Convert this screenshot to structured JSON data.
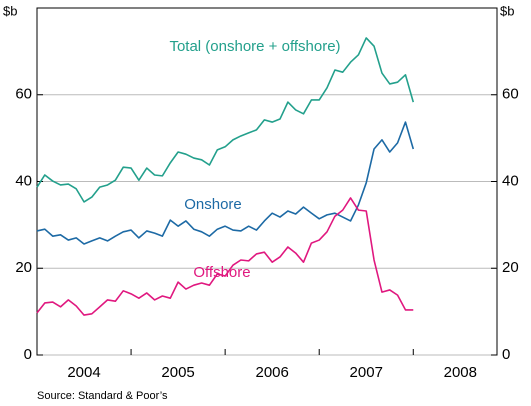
{
  "chart_data": {
    "type": "line",
    "y_label": "$b",
    "source": "Source: Standard & Poor’s",
    "x": [
      2004.0,
      2004.083,
      2004.167,
      2004.25,
      2004.333,
      2004.417,
      2004.5,
      2004.583,
      2004.667,
      2004.75,
      2004.833,
      2004.917,
      2005.0,
      2005.083,
      2005.167,
      2005.25,
      2005.333,
      2005.417,
      2005.5,
      2005.583,
      2005.667,
      2005.75,
      2005.833,
      2005.917,
      2006.0,
      2006.083,
      2006.167,
      2006.25,
      2006.333,
      2006.417,
      2006.5,
      2006.583,
      2006.667,
      2006.75,
      2006.833,
      2006.917,
      2007.0,
      2007.083,
      2007.167,
      2007.25,
      2007.333,
      2007.417,
      2007.5,
      2007.583,
      2007.667,
      2007.75,
      2007.833,
      2007.917,
      2008.0
    ],
    "xlim": [
      2004,
      2008.89
    ],
    "xticks": [
      {
        "value": 2004.5,
        "label": "2004"
      },
      {
        "value": 2005.5,
        "label": "2005"
      },
      {
        "value": 2006.5,
        "label": "2006"
      },
      {
        "value": 2007.5,
        "label": "2007"
      },
      {
        "value": 2008.5,
        "label": "2008"
      }
    ],
    "ylim": [
      0,
      80
    ],
    "yticks": [
      0,
      20,
      40,
      60
    ],
    "grid": true,
    "series": [
      {
        "name": "Total (onshore + offshore)",
        "color": "#23a08c",
        "values": [
          38.7,
          41.5,
          40.1,
          39.2,
          39.4,
          38.3,
          35.3,
          36.4,
          38.7,
          39.2,
          40.3,
          43.3,
          43.1,
          40.3,
          43.1,
          41.5,
          41.3,
          44.3,
          46.8,
          46.3,
          45.4,
          45.0,
          43.8,
          47.3,
          48.0,
          49.6,
          50.5,
          51.2,
          51.9,
          54.2,
          53.7,
          54.4,
          58.3,
          56.5,
          55.6,
          58.8,
          58.8,
          61.6,
          65.7,
          65.2,
          67.5,
          69.2,
          73.1,
          71.2,
          65.0,
          62.5,
          62.9,
          64.6,
          58.3
        ]
      },
      {
        "name": "Onshore",
        "color": "#1d6aa5",
        "values": [
          28.6,
          29.0,
          27.4,
          27.7,
          26.5,
          27.0,
          25.6,
          26.3,
          27.0,
          26.3,
          27.4,
          28.4,
          28.8,
          27.0,
          28.6,
          28.1,
          27.4,
          31.1,
          29.7,
          30.9,
          29.0,
          28.4,
          27.4,
          29.0,
          29.7,
          28.8,
          28.6,
          29.7,
          28.8,
          30.9,
          32.7,
          31.8,
          33.2,
          32.5,
          34.1,
          32.7,
          31.4,
          32.3,
          32.7,
          31.8,
          30.9,
          34.6,
          39.7,
          47.5,
          49.6,
          46.8,
          48.9,
          53.7,
          47.5
        ]
      },
      {
        "name": "Offshore",
        "color": "#e0187f",
        "values": [
          9.7,
          12.0,
          12.2,
          11.1,
          12.7,
          11.3,
          9.2,
          9.5,
          11.1,
          12.7,
          12.4,
          14.8,
          14.1,
          13.1,
          14.3,
          12.7,
          13.6,
          13.1,
          16.8,
          15.2,
          16.1,
          16.6,
          16.1,
          18.7,
          18.2,
          20.7,
          21.9,
          21.7,
          23.3,
          23.7,
          21.4,
          22.6,
          24.9,
          23.5,
          21.4,
          25.8,
          26.5,
          28.4,
          32.0,
          33.4,
          36.2,
          33.4,
          33.2,
          21.9,
          14.5,
          15.0,
          13.8,
          10.4,
          10.4
        ]
      }
    ]
  }
}
